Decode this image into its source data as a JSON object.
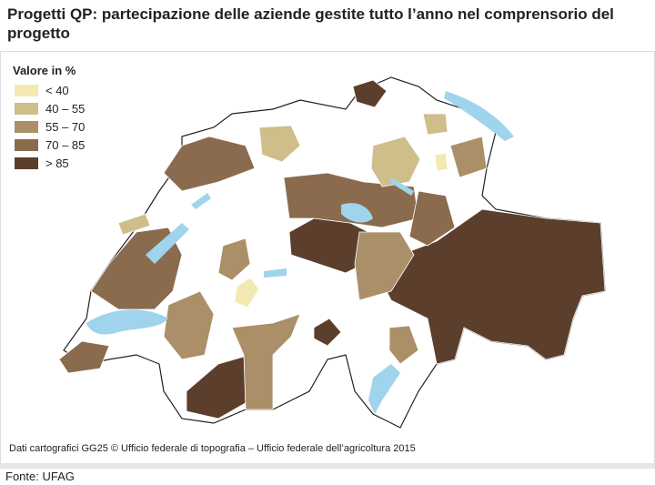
{
  "title": "Progetti QP: partecipazione delle aziende gestite tutto l’anno nel comprensorio del progetto",
  "legend": {
    "title": "Valore in %",
    "items": [
      {
        "label": "< 40",
        "color": "#f3eab3"
      },
      {
        "label": "40 – 55",
        "color": "#cfbd8a"
      },
      {
        "label": "55 – 70",
        "color": "#ab8f68"
      },
      {
        "label": "70 – 85",
        "color": "#8b6b4d"
      },
      {
        "label": "> 85",
        "color": "#5b3e2c"
      }
    ]
  },
  "credit": "Dati cartografici GG25 © Ufficio federale di topografia – Ufficio federale dell’agricoltura 2015",
  "source": "Fonte: UFAG"
}
